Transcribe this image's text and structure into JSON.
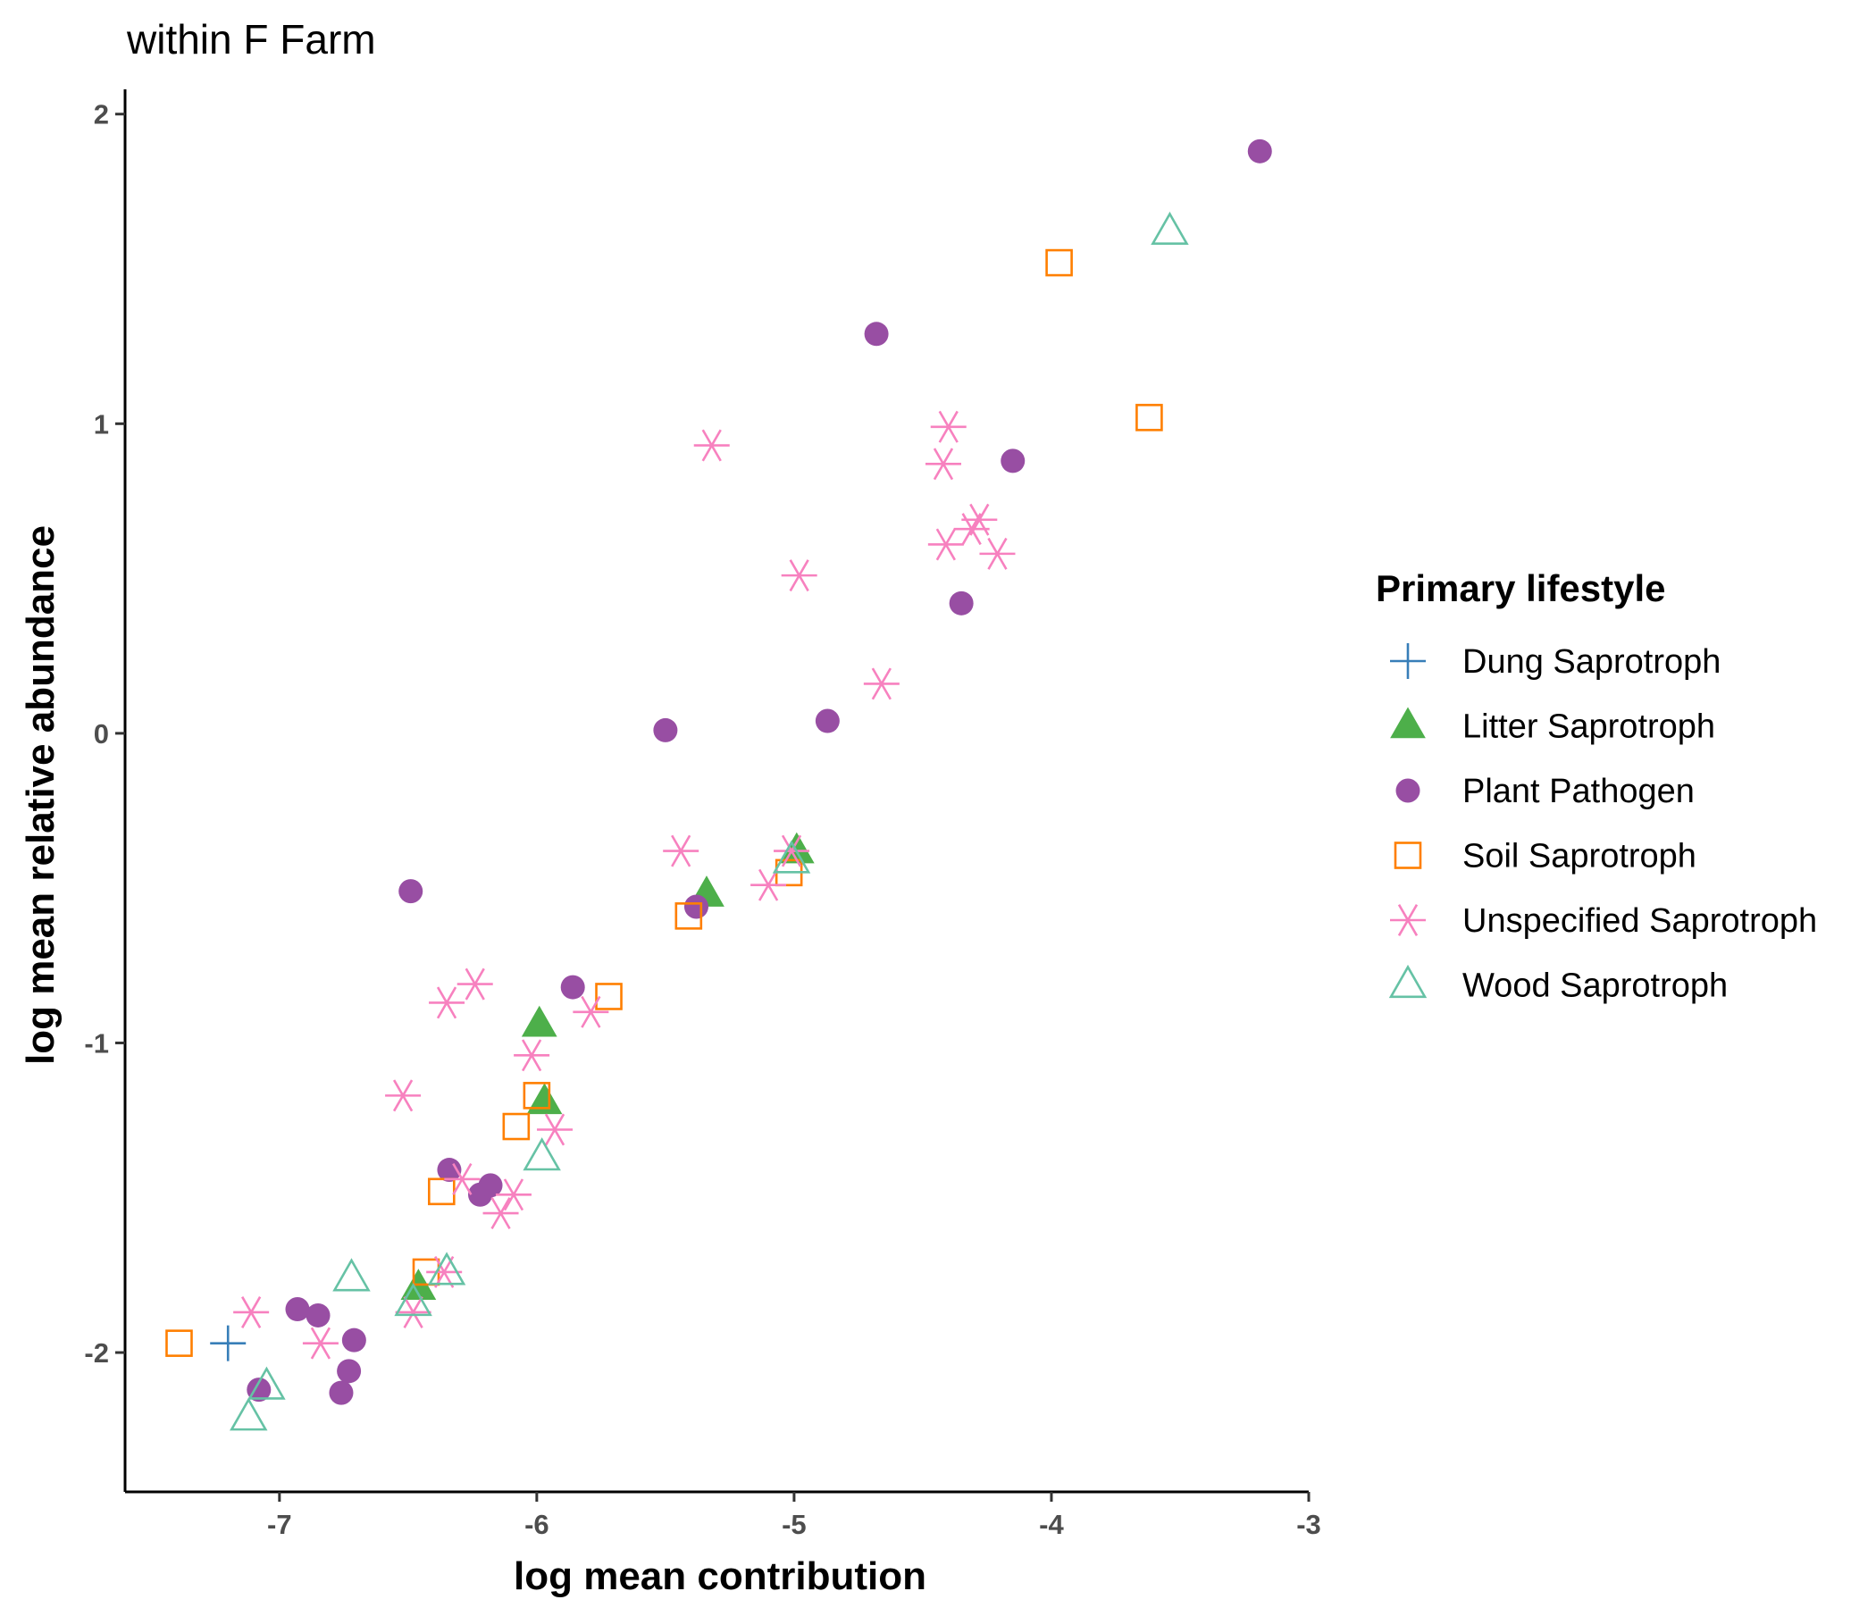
{
  "chart_data": {
    "type": "scatter",
    "title": "within F Farm",
    "xlabel": "log mean contribution",
    "ylabel": "log mean relative abundance",
    "xlim": [
      -7.6,
      -3.0
    ],
    "ylim": [
      -2.45,
      2.08
    ],
    "xticks": [
      -7,
      -6,
      -5,
      -4,
      -3
    ],
    "yticks": [
      -2,
      -1,
      0,
      1,
      2
    ],
    "xtick_labels": [
      "-7",
      "-6",
      "-5",
      "-4",
      "-3"
    ],
    "ytick_labels": [
      "-2",
      "-1",
      "0",
      "1",
      "2"
    ],
    "grid": false,
    "legend": {
      "title": "Primary lifestyle",
      "position": "right"
    },
    "series": [
      {
        "name": "Dung Saprotroph",
        "shape": "plus",
        "color": "#377eb8",
        "points": [
          [
            -7.2,
            -1.97
          ]
        ]
      },
      {
        "name": "Litter Saprotroph",
        "shape": "triangle-filled",
        "color": "#4daf4a",
        "points": [
          [
            -5.34,
            -0.52
          ],
          [
            -4.99,
            -0.38
          ],
          [
            -5.99,
            -0.94
          ],
          [
            -5.97,
            -1.19
          ],
          [
            -6.46,
            -1.79
          ]
        ]
      },
      {
        "name": "Plant Pathogen",
        "shape": "circle-filled",
        "color": "#984ea3",
        "points": [
          [
            -3.19,
            1.88
          ],
          [
            -4.68,
            1.29
          ],
          [
            -4.15,
            0.88
          ],
          [
            -4.35,
            0.42
          ],
          [
            -5.5,
            0.01
          ],
          [
            -4.87,
            0.04
          ],
          [
            -6.49,
            -0.51
          ],
          [
            -5.38,
            -0.56
          ],
          [
            -5.86,
            -0.82
          ],
          [
            -6.34,
            -1.41
          ],
          [
            -6.22,
            -1.49
          ],
          [
            -6.18,
            -1.46
          ],
          [
            -6.93,
            -1.86
          ],
          [
            -6.85,
            -1.88
          ],
          [
            -6.71,
            -1.96
          ],
          [
            -6.73,
            -2.06
          ],
          [
            -7.08,
            -2.12
          ],
          [
            -6.76,
            -2.13
          ]
        ]
      },
      {
        "name": "Soil Saprotroph",
        "shape": "square-open",
        "color": "#ff7f00",
        "points": [
          [
            -3.97,
            1.52
          ],
          [
            -3.62,
            1.02
          ],
          [
            -5.41,
            -0.59
          ],
          [
            -5.02,
            -0.45
          ],
          [
            -5.72,
            -0.85
          ],
          [
            -6.0,
            -1.17
          ],
          [
            -6.08,
            -1.27
          ],
          [
            -6.37,
            -1.48
          ],
          [
            -6.43,
            -1.74
          ],
          [
            -7.39,
            -1.97
          ]
        ]
      },
      {
        "name": "Unspecified Saprotroph",
        "shape": "asterisk",
        "color": "#f781bf",
        "points": [
          [
            -5.32,
            0.93
          ],
          [
            -4.4,
            0.99
          ],
          [
            -4.42,
            0.87
          ],
          [
            -4.28,
            0.69
          ],
          [
            -4.31,
            0.66
          ],
          [
            -4.41,
            0.61
          ],
          [
            -4.21,
            0.58
          ],
          [
            -4.98,
            0.51
          ],
          [
            -4.66,
            0.16
          ],
          [
            -5.44,
            -0.38
          ],
          [
            -5.01,
            -0.38
          ],
          [
            -5.1,
            -0.49
          ],
          [
            -6.24,
            -0.81
          ],
          [
            -6.35,
            -0.87
          ],
          [
            -5.79,
            -0.9
          ],
          [
            -6.02,
            -1.04
          ],
          [
            -6.52,
            -1.17
          ],
          [
            -5.93,
            -1.28
          ],
          [
            -6.29,
            -1.44
          ],
          [
            -6.09,
            -1.49
          ],
          [
            -6.14,
            -1.55
          ],
          [
            -6.36,
            -1.74
          ],
          [
            -6.48,
            -1.87
          ],
          [
            -7.11,
            -1.87
          ],
          [
            -6.84,
            -1.97
          ]
        ]
      },
      {
        "name": "Wood Saprotroph",
        "shape": "triangle-open",
        "color": "#66c2a5",
        "points": [
          [
            -3.54,
            1.62
          ],
          [
            -5.01,
            -0.41
          ],
          [
            -5.98,
            -1.37
          ],
          [
            -6.72,
            -1.76
          ],
          [
            -6.35,
            -1.74
          ],
          [
            -6.48,
            -1.84
          ],
          [
            -7.05,
            -2.11
          ],
          [
            -7.12,
            -2.21
          ]
        ]
      }
    ]
  }
}
